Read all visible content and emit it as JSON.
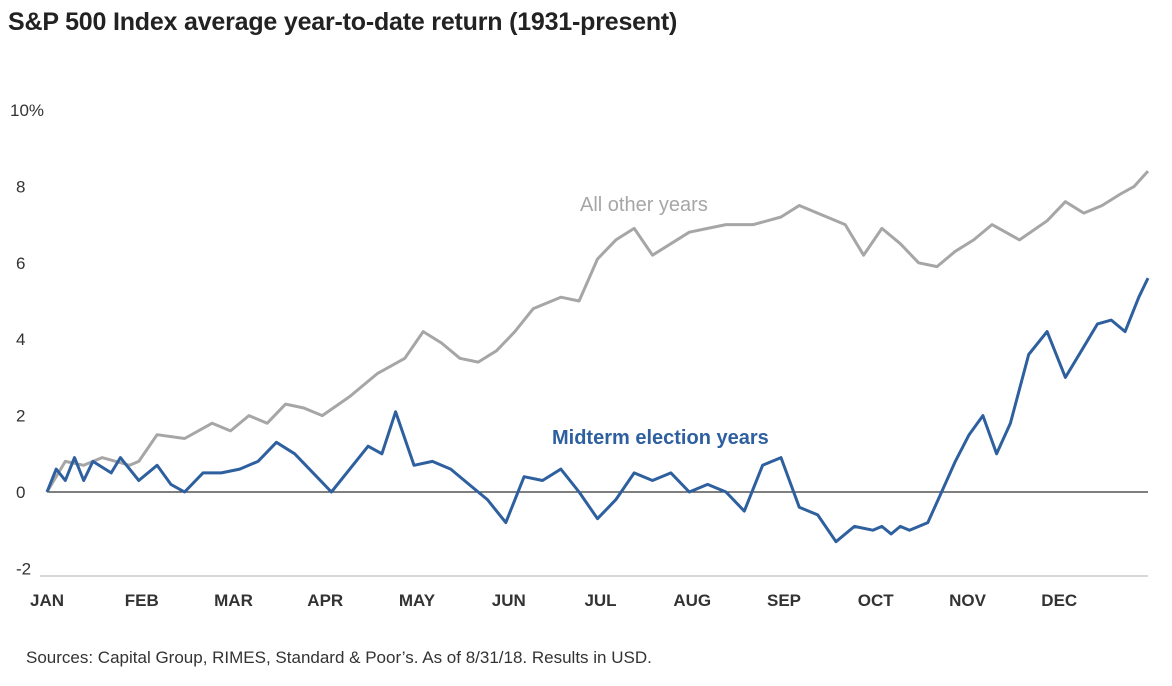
{
  "chart_data": {
    "type": "line",
    "title": "S&P 500 Index average year-to-date return (1931-present)",
    "ylabel": "",
    "xlabel": "",
    "ylim": [
      -2,
      10
    ],
    "y_ticks": [
      "-2",
      "0",
      "2",
      "4",
      "6",
      "8",
      "10%"
    ],
    "y_tick_values": [
      -2,
      0,
      2,
      4,
      6,
      8,
      10
    ],
    "categories": [
      "JAN",
      "FEB",
      "MAR",
      "APR",
      "MAY",
      "JUN",
      "JUL",
      "AUG",
      "SEP",
      "OCT",
      "NOV",
      "DEC"
    ],
    "x_unit": "month (0 = start of January, 12 = end of December)",
    "xlim": [
      0,
      12
    ],
    "series": [
      {
        "name": "All other years",
        "color": "#a6a6a6",
        "x": [
          0,
          0.2,
          0.4,
          0.6,
          0.9,
          1.0,
          1.2,
          1.5,
          1.8,
          2.0,
          2.2,
          2.4,
          2.6,
          2.8,
          3.0,
          3.3,
          3.6,
          3.9,
          4.1,
          4.3,
          4.5,
          4.7,
          4.9,
          5.1,
          5.3,
          5.6,
          5.8,
          6.0,
          6.2,
          6.4,
          6.6,
          6.8,
          7.0,
          7.2,
          7.4,
          7.7,
          8.0,
          8.2,
          8.5,
          8.7,
          8.9,
          9.1,
          9.3,
          9.5,
          9.7,
          9.9,
          10.1,
          10.3,
          10.6,
          10.9,
          11.1,
          11.3,
          11.5,
          11.7,
          11.85,
          12.0
        ],
        "values": [
          0,
          0.8,
          0.7,
          0.9,
          0.7,
          0.8,
          1.5,
          1.4,
          1.8,
          1.6,
          2.0,
          1.8,
          2.3,
          2.2,
          2.0,
          2.5,
          3.1,
          3.5,
          4.2,
          3.9,
          3.5,
          3.4,
          3.7,
          4.2,
          4.8,
          5.1,
          5.0,
          6.1,
          6.6,
          6.9,
          6.2,
          6.5,
          6.8,
          6.9,
          7.0,
          7.0,
          7.2,
          7.5,
          7.2,
          7.0,
          6.2,
          6.9,
          6.5,
          6.0,
          5.9,
          6.3,
          6.6,
          7.0,
          6.6,
          7.1,
          7.6,
          7.3,
          7.5,
          7.8,
          8.0,
          8.4
        ]
      },
      {
        "name": "Midterm election years",
        "color": "#2e5f9e",
        "x": [
          0,
          0.1,
          0.2,
          0.3,
          0.4,
          0.5,
          0.7,
          0.8,
          0.9,
          1.0,
          1.2,
          1.35,
          1.5,
          1.7,
          1.9,
          2.1,
          2.3,
          2.5,
          2.7,
          2.9,
          3.1,
          3.3,
          3.5,
          3.65,
          3.8,
          4.0,
          4.2,
          4.4,
          4.6,
          4.8,
          5.0,
          5.2,
          5.4,
          5.6,
          5.8,
          6.0,
          6.2,
          6.4,
          6.6,
          6.8,
          7.0,
          7.2,
          7.4,
          7.6,
          7.8,
          8.0,
          8.2,
          8.4,
          8.6,
          8.8,
          9.0,
          9.1,
          9.2,
          9.3,
          9.4,
          9.6,
          9.75,
          9.9,
          10.05,
          10.2,
          10.35,
          10.5,
          10.7,
          10.9,
          11.1,
          11.3,
          11.45,
          11.6,
          11.75,
          11.9,
          12.0
        ],
        "values": [
          0,
          0.6,
          0.3,
          0.9,
          0.3,
          0.8,
          0.5,
          0.9,
          0.6,
          0.3,
          0.7,
          0.2,
          0.0,
          0.5,
          0.5,
          0.6,
          0.8,
          1.3,
          1.0,
          0.5,
          0.0,
          0.6,
          1.2,
          1.0,
          2.1,
          0.7,
          0.8,
          0.6,
          0.2,
          -0.2,
          -0.8,
          0.4,
          0.3,
          0.6,
          0.0,
          -0.7,
          -0.2,
          0.5,
          0.3,
          0.5,
          0.0,
          0.2,
          0.0,
          -0.5,
          0.7,
          0.9,
          -0.4,
          -0.6,
          -1.3,
          -0.9,
          -1.0,
          -0.9,
          -1.1,
          -0.9,
          -1.0,
          -0.8,
          0.0,
          0.8,
          1.5,
          2.0,
          1.0,
          1.8,
          3.6,
          4.2,
          3.0,
          3.8,
          4.4,
          4.5,
          4.2,
          5.1,
          5.6
        ]
      }
    ],
    "series_labels": [
      "All other years",
      "Midterm election years"
    ],
    "reference_line": 0,
    "grid": false,
    "legend": "inline annotations"
  },
  "source_note": "Sources: Capital Group, RIMES, Standard & Poor’s. As of 8/31/18. Results in USD."
}
